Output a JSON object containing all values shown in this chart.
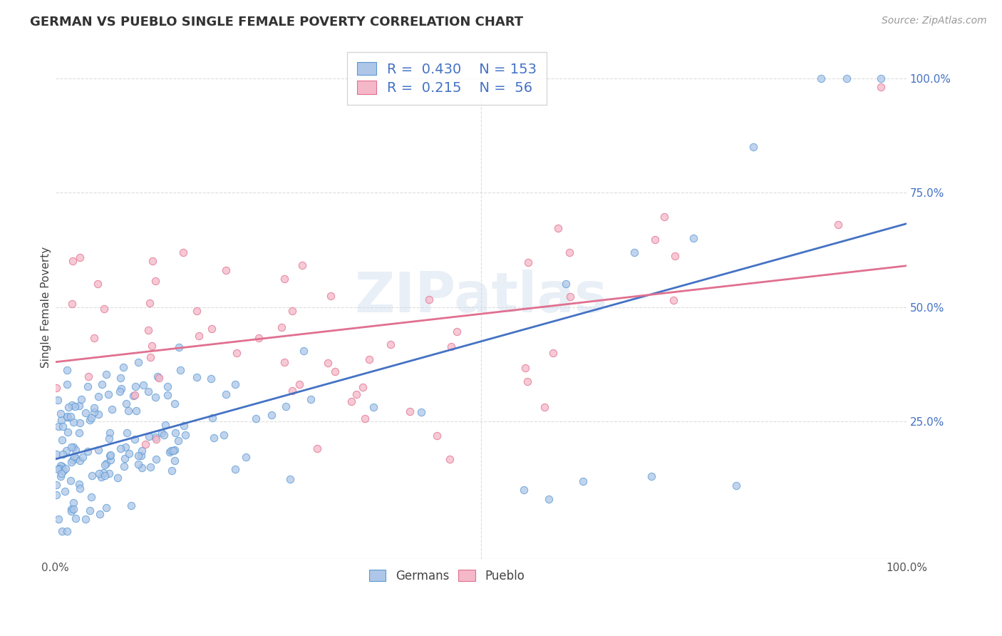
{
  "title": "GERMAN VS PUEBLO SINGLE FEMALE POVERTY CORRELATION CHART",
  "source": "Source: ZipAtlas.com",
  "ylabel": "Single Female Poverty",
  "xlabel": "",
  "xlim": [
    0.0,
    1.0
  ],
  "ylim": [
    -0.05,
    1.05
  ],
  "german_color": "#aec6e8",
  "pueblo_color": "#f5b8c8",
  "german_edge_color": "#5b9bd5",
  "pueblo_edge_color": "#e07090",
  "german_line_color": "#4472c4",
  "pueblo_line_color": "#e07090",
  "legend_text_color": "#4472c4",
  "R_german": 0.43,
  "N_german": 153,
  "R_pueblo": 0.215,
  "N_pueblo": 56,
  "watermark": "ZIPatlas",
  "background_color": "#ffffff",
  "grid_color": "#dddddd",
  "title_fontsize": 13,
  "source_fontsize": 10,
  "axis_label_fontsize": 11,
  "tick_fontsize": 11,
  "legend_fontsize": 14
}
